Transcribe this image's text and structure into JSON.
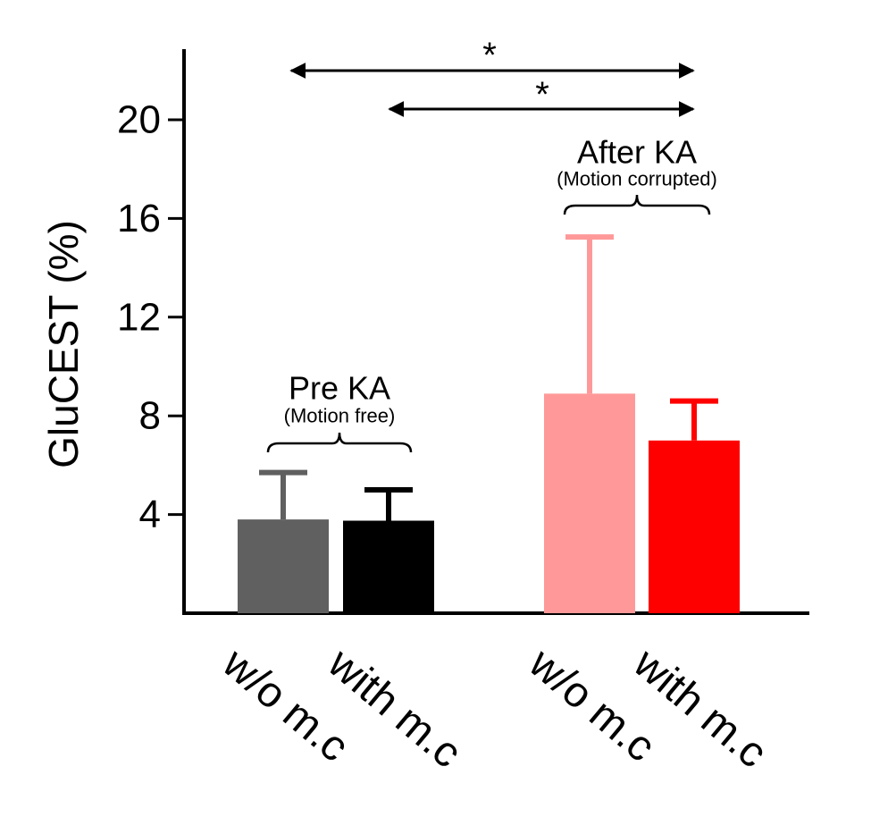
{
  "chart_data": {
    "type": "bar",
    "ylabel": "GluCEST (%)",
    "ylim": [
      0,
      22
    ],
    "yticks": [
      4,
      8,
      12,
      16,
      20
    ],
    "bars": [
      {
        "group": "pre",
        "label": "w/o m.c",
        "value": 3.8,
        "error_upper": 5.7,
        "color": "#606060"
      },
      {
        "group": "pre",
        "label": "with m.c",
        "value": 3.75,
        "error_upper": 5.0,
        "color": "#000000"
      },
      {
        "group": "after",
        "label": "w/o m.c",
        "value": 8.9,
        "error_upper": 15.25,
        "color": "#ff9999"
      },
      {
        "group": "after",
        "label": "with m.c",
        "value": 7.0,
        "error_upper": 8.6,
        "color": "#ff0000"
      }
    ],
    "groups": [
      {
        "id": "pre",
        "title": "Pre KA",
        "subtitle": "(Motion free)"
      },
      {
        "id": "after",
        "title": "After KA",
        "subtitle": "(Motion corrupted)"
      }
    ],
    "significance": [
      {
        "from_bar": 0,
        "to_bar": 3,
        "label": "*"
      },
      {
        "from_bar": 1,
        "to_bar": 3,
        "label": "*"
      }
    ]
  }
}
